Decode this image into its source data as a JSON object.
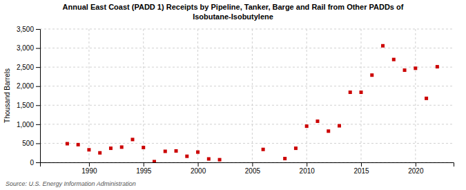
{
  "chart_data": {
    "type": "scatter",
    "title": "Annual East Coast (PADD 1) Receipts by Pipeline, Tanker, Barge and Rail from Other PADDs of\nIsobutane-Isobutylene",
    "y_label": "Thousand Barrels",
    "annotation": "Source: U.S. Energy Information Administration",
    "color": "#cc0000",
    "marker": "square",
    "grid": true,
    "xlim": [
      1985.5,
      2023.5
    ],
    "xticks": [
      1990,
      1995,
      2000,
      2005,
      2010,
      2015,
      2020
    ],
    "ylim": [
      0,
      3500
    ],
    "yticks": [
      0,
      500,
      {
        "value": 1000,
        "label": "1,000"
      },
      {
        "value": 1500,
        "label": "1,500"
      },
      {
        "value": 2000,
        "label": "2,000"
      },
      {
        "value": 2500,
        "label": "2,500"
      },
      {
        "value": 3000,
        "label": "3,000"
      },
      {
        "value": 3500,
        "label": "3,500"
      }
    ],
    "x": [
      1988,
      1989,
      1990,
      1991,
      1992,
      1993,
      1994,
      1995,
      1996,
      1997,
      1998,
      1999,
      2000,
      2001,
      2002,
      2006,
      2008,
      2009,
      2010,
      2011,
      2012,
      2013,
      2014,
      2015,
      2016,
      2017,
      2018,
      2019,
      2020,
      2021,
      2022
    ],
    "values": [
      490,
      465,
      330,
      250,
      370,
      400,
      600,
      390,
      20,
      290,
      300,
      160,
      270,
      90,
      70,
      340,
      100,
      370,
      950,
      1080,
      820,
      960,
      1840,
      1840,
      2290,
      3060,
      2700,
      2420,
      2470,
      1680,
      2510
    ]
  }
}
